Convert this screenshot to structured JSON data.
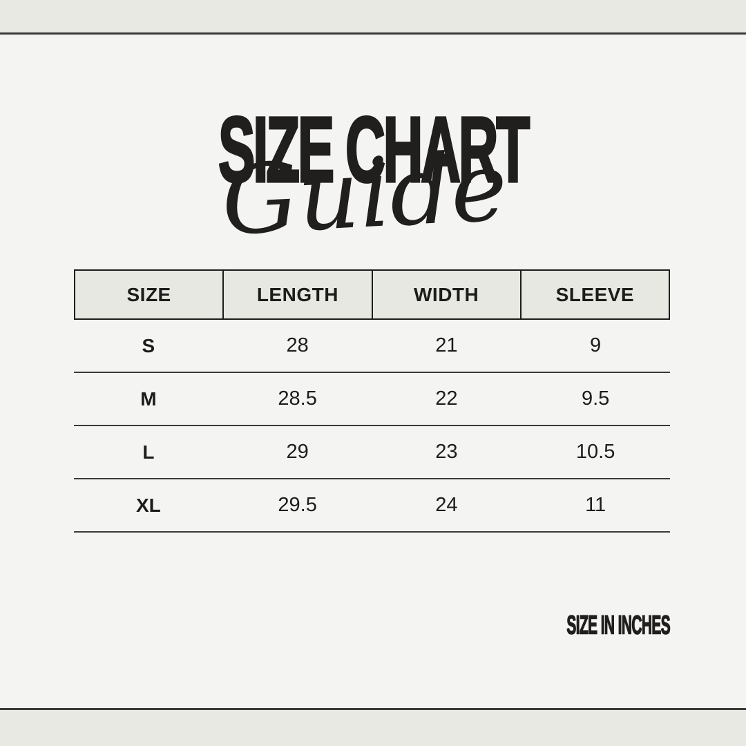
{
  "page": {
    "background": "#f4f4f2",
    "band_color": "#e8e9e3",
    "rule_color": "#3a3a38",
    "text_color": "#211f1e"
  },
  "title": {
    "main": "SIZE CHART",
    "script": "Guide"
  },
  "table": {
    "header_fill": "#e7e8e1",
    "border_color": "#1d1c1a",
    "row_line_color": "#3a3a38",
    "headers": [
      "SIZE",
      "LENGTH",
      "WIDTH",
      "SLEEVE"
    ],
    "rows": [
      {
        "size": "S",
        "length": "28",
        "width": "21",
        "sleeve": "9"
      },
      {
        "size": "M",
        "length": "28.5",
        "width": "22",
        "sleeve": "9.5"
      },
      {
        "size": "L",
        "length": "29",
        "width": "23",
        "sleeve": "10.5"
      },
      {
        "size": "XL",
        "length": "29.5",
        "width": "24",
        "sleeve": "11"
      }
    ]
  },
  "footer": {
    "note": "SIZE IN INCHES"
  },
  "chart_data": {
    "type": "table",
    "title": "SIZE CHART Guide",
    "columns": [
      "SIZE",
      "LENGTH",
      "WIDTH",
      "SLEEVE"
    ],
    "rows": [
      [
        "S",
        28,
        21,
        9
      ],
      [
        "M",
        28.5,
        22,
        9.5
      ],
      [
        "L",
        29,
        23,
        10.5
      ],
      [
        "XL",
        29.5,
        24,
        11
      ]
    ],
    "units": "inches",
    "note": "SIZE IN INCHES"
  }
}
